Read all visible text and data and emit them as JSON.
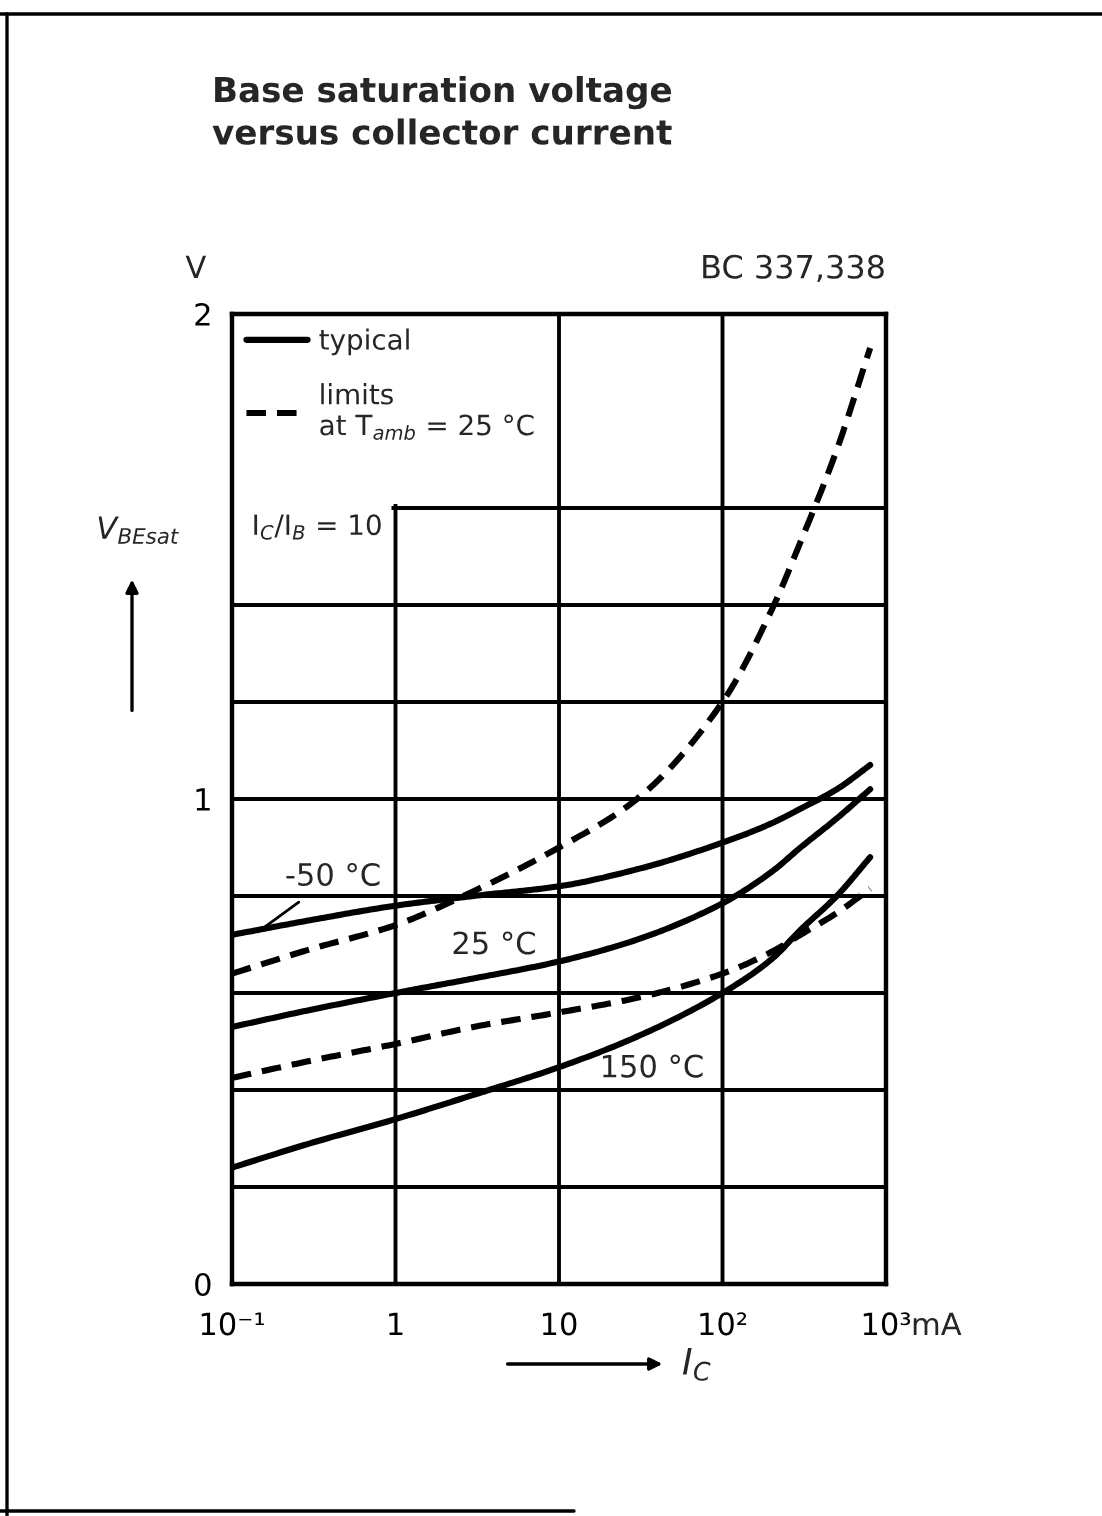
{
  "chart_data": {
    "type": "line",
    "title": "Base saturation voltage\nversus collector current",
    "xlabel": "I$_{C}$",
    "ylabel": "V$_{BEsat}$",
    "x": [
      0.1,
      0.3,
      1,
      3,
      10,
      30,
      100,
      200,
      300,
      500,
      800
    ],
    "series": [
      {
        "name": "typical",
        "color": "#000000",
        "line_style": "solid",
        "values": [
          0.72,
          0.75,
          0.78,
          0.8,
          0.82,
          0.855,
          0.91,
          0.95,
          0.98,
          1.02,
          1.07
        ]
      },
      {
        "color": "#000000",
        "line_style": "solid",
        "values": [
          0.53,
          0.565,
          0.6,
          0.63,
          0.665,
          0.71,
          0.785,
          0.85,
          0.9,
          0.96,
          1.02
        ]
      },
      {
        "color": "#000000",
        "line_style": "solid",
        "values": [
          0.24,
          0.29,
          0.34,
          0.39,
          0.447,
          0.51,
          0.6,
          0.67,
          0.73,
          0.8,
          0.88
        ]
      },
      {
        "name": "limits\nat T$_{amb}$ = 25 °C",
        "color": "#000000",
        "line_style": "dashed",
        "values": [
          0.64,
          0.69,
          0.74,
          0.81,
          0.9,
          1.0,
          1.2,
          1.39,
          1.53,
          1.72,
          1.93
        ]
      },
      {
        "color": "#000000",
        "line_style": "dashed",
        "values": [
          0.425,
          0.46,
          0.495,
          0.53,
          0.56,
          0.59,
          0.64,
          0.685,
          0.72,
          0.765,
          0.815
        ]
      }
    ],
    "log": "x",
    "xlim": [
      0.1,
      1000
    ],
    "xticks": [
      {
        "value": 0.1,
        "label": "10⁻¹"
      },
      1,
      10,
      {
        "value": 100,
        "label": "10²"
      },
      {
        "value": 1000,
        "label": "10³"
      }
    ],
    "ylim": [
      0,
      2
    ],
    "yticks": [
      0,
      {
        "value": 0.2,
        "label": null
      },
      {
        "value": 0.4,
        "label": null
      },
      {
        "value": 0.6,
        "label": null
      },
      {
        "value": 0.8,
        "label": null
      },
      1,
      {
        "value": 1.2,
        "label": null
      },
      {
        "value": 1.4,
        "label": null
      },
      {
        "value": 1.6,
        "label": null
      },
      2
    ],
    "grid": true,
    "legend": "top left",
    "annotations": [
      "V",
      "mA",
      "BC 337,338",
      "I$_{C}$/I$_{B}$ = 10",
      {
        "text": "-50 °C",
        "x": 0.15,
        "y": 0.73
      },
      {
        "text": "25 °C",
        "x": 4,
        "y": 0.65
      },
      {
        "text": "150 °C",
        "x": 37,
        "y": 0.52
      }
    ]
  }
}
